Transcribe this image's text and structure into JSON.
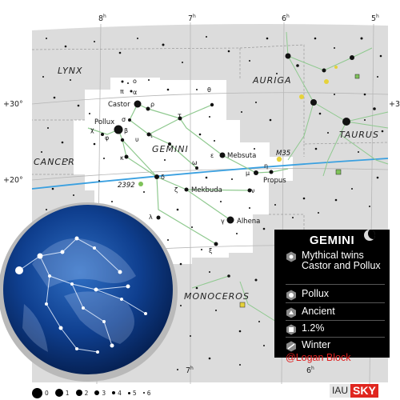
{
  "ra_labels": [
    {
      "hour": "8",
      "sup": "h"
    },
    {
      "hour": "7",
      "sup": "h"
    },
    {
      "hour": "6",
      "sup": "h"
    },
    {
      "hour": "5",
      "sup": "h"
    }
  ],
  "dec_labels": [
    "+30°",
    "+20°"
  ],
  "constellations": {
    "gemini": "GEMINI",
    "lynx": "LYNX",
    "auriga": "AURIGA",
    "taurus": "TAURUS",
    "cancer": "CANCER",
    "monoceros": "MONOCEROS"
  },
  "stars": {
    "castor": "Castor",
    "pollux": "Pollux",
    "mebsuta": "Mebsuta",
    "mekbuda": "Mekbuda",
    "alhena": "Alhena",
    "propus": "Propus"
  },
  "objects": {
    "m35": "M35",
    "ngc2392": "2392"
  },
  "greek": {
    "alpha": "α",
    "beta": "β",
    "gamma": "γ",
    "delta": "δ",
    "epsilon": "ε",
    "zeta": "ζ",
    "eta": "η",
    "theta": "θ",
    "iota": "ι",
    "kappa": "κ",
    "lambda": "λ",
    "mu": "μ",
    "nu": "ν",
    "xi": "ξ",
    "omicron": "o",
    "pi": "π",
    "rho": "ρ",
    "sigma": "σ",
    "tau": "τ",
    "upsilon": "υ",
    "phi": "φ",
    "chi": "χ",
    "omega": "ω"
  },
  "info": {
    "title": "GEMINI",
    "meaning": "Mythical twins Castor and Pollux",
    "brightest_star": "Pollux",
    "origin": "Ancient",
    "sky_area": "1.2%",
    "season": "Winter"
  },
  "credit": "@Logan Block",
  "magnitude_legend": [
    "0",
    "1",
    "2",
    "3",
    "4",
    "5",
    "6"
  ],
  "logo": {
    "iau": "IAU",
    "sky": "SKY"
  },
  "colors": {
    "sky_background": "#dcdcdc",
    "highlight_region": "#ffffff",
    "stick_figure": "#8fc98f",
    "ecliptic": "#3aa0e0",
    "info_panel": "#000000",
    "credit": "#e02020",
    "logo_red": "#e0261f",
    "globe": "#0c3a82"
  }
}
